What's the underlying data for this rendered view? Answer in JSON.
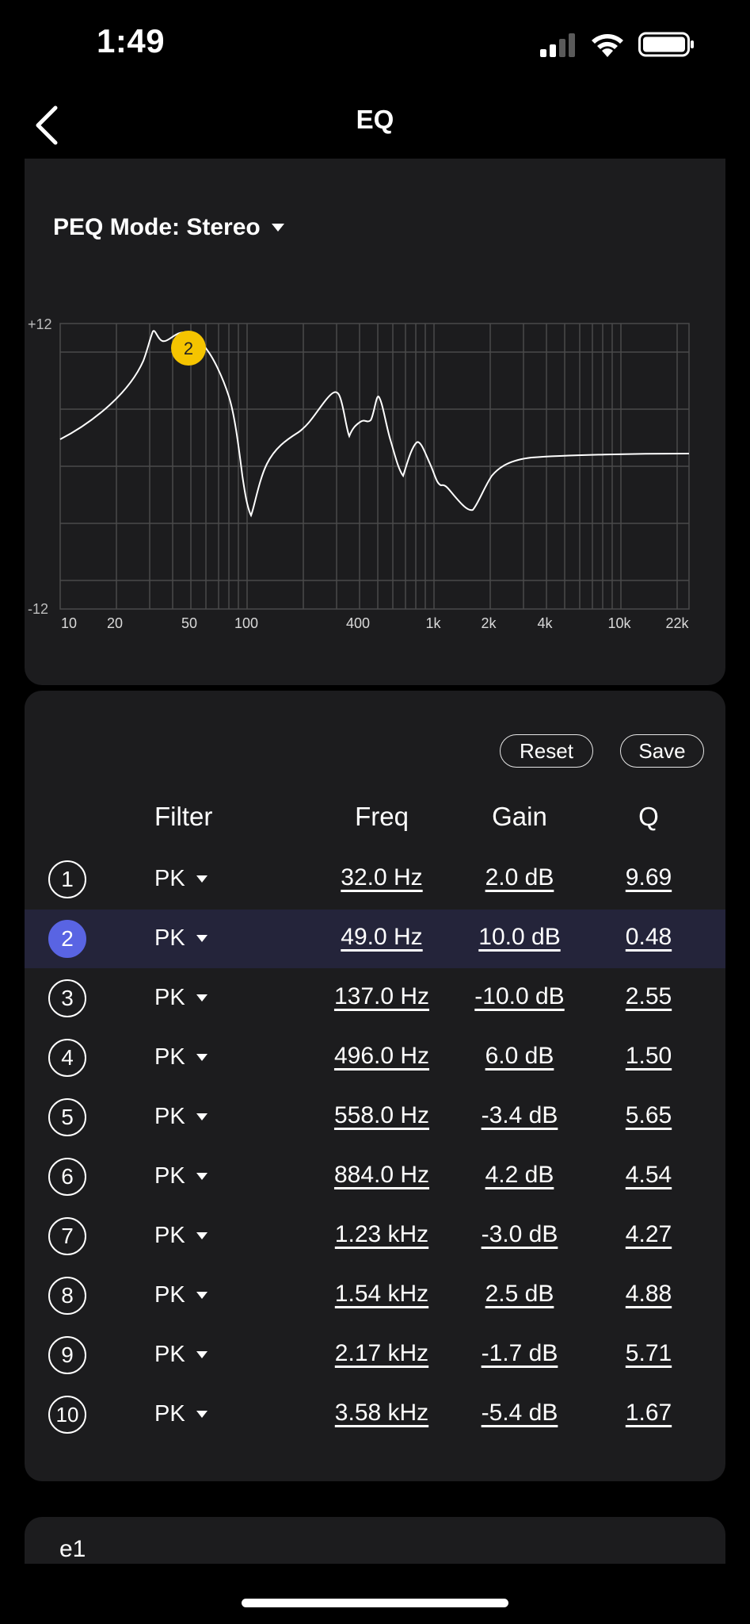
{
  "status": {
    "time": "1:49"
  },
  "nav": {
    "title": "EQ"
  },
  "graph": {
    "mode_label": "PEQ Mode: Stereo",
    "y_top": "+12",
    "y_bottom": "-12",
    "x_labels": [
      "10",
      "20",
      "50",
      "100",
      "400",
      "1k",
      "2k",
      "4k",
      "10k",
      "22k"
    ],
    "selected_band": "2"
  },
  "controls": {
    "reset": "Reset",
    "save": "Save"
  },
  "table": {
    "headers": {
      "filter": "Filter",
      "freq": "Freq",
      "gain": "Gain",
      "q": "Q"
    },
    "bands": [
      {
        "n": "1",
        "filter": "PK",
        "freq": "32.0 Hz",
        "gain": "2.0 dB",
        "q": "9.69"
      },
      {
        "n": "2",
        "filter": "PK",
        "freq": "49.0 Hz",
        "gain": "10.0 dB",
        "q": "0.48"
      },
      {
        "n": "3",
        "filter": "PK",
        "freq": "137.0 Hz",
        "gain": "-10.0 dB",
        "q": "2.55"
      },
      {
        "n": "4",
        "filter": "PK",
        "freq": "496.0 Hz",
        "gain": "6.0 dB",
        "q": "1.50"
      },
      {
        "n": "5",
        "filter": "PK",
        "freq": "558.0 Hz",
        "gain": "-3.4 dB",
        "q": "5.65"
      },
      {
        "n": "6",
        "filter": "PK",
        "freq": "884.0 Hz",
        "gain": "4.2 dB",
        "q": "4.54"
      },
      {
        "n": "7",
        "filter": "PK",
        "freq": "1.23 kHz",
        "gain": "-3.0 dB",
        "q": "4.27"
      },
      {
        "n": "8",
        "filter": "PK",
        "freq": "1.54 kHz",
        "gain": "2.5 dB",
        "q": "4.88"
      },
      {
        "n": "9",
        "filter": "PK",
        "freq": "2.17 kHz",
        "gain": "-1.7 dB",
        "q": "5.71"
      },
      {
        "n": "10",
        "filter": "PK",
        "freq": "3.58 kHz",
        "gain": "-5.4 dB",
        "q": "1.67"
      }
    ]
  },
  "preset": {
    "name": "e1",
    "more": "• • •"
  },
  "colors": {
    "accent": "#5964e3",
    "handle": "#f5c400",
    "card": "#1c1c1e"
  }
}
